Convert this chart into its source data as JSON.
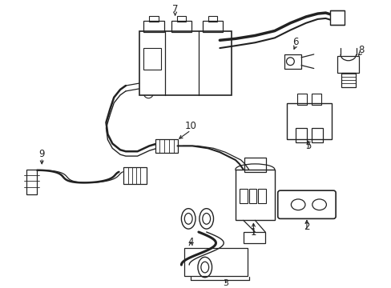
{
  "background_color": "#ffffff",
  "line_color": "#222222",
  "label_fontsize": 8.5,
  "figsize": [
    4.89,
    3.6
  ],
  "dpi": 100
}
